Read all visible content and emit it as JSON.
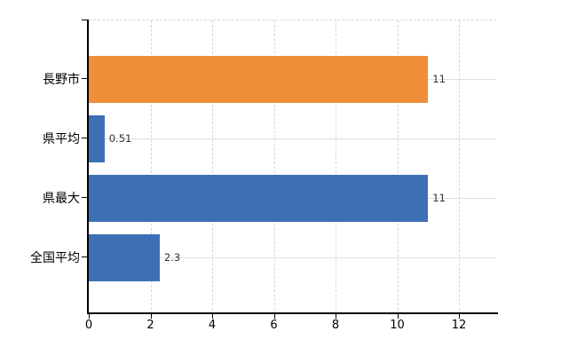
{
  "chart_data": {
    "type": "bar",
    "orientation": "horizontal",
    "title": "",
    "categories": [
      "長野市",
      "県平均",
      "県最大",
      "全国平均"
    ],
    "values": [
      11,
      0.51,
      11,
      2.3
    ],
    "value_labels": [
      "11",
      "0.51",
      "11",
      "2.3"
    ],
    "series": [
      {
        "name": "values",
        "values": [
          11,
          0.51,
          11,
          2.3
        ],
        "colors": [
          "#ef8f39",
          "#3e6fb5",
          "#3e6fb5",
          "#3e6fb5"
        ]
      }
    ],
    "colors": {
      "highlight_bar": "#ef8f39",
      "default_bar": "#3e6fb5",
      "axis": "#000000",
      "grid": "#dedede",
      "text": "#000000",
      "value_text": "#333333",
      "background": "#ffffff"
    },
    "xlabel": "",
    "ylabel": "",
    "xlim": [
      0,
      13.2
    ],
    "x_ticks": [
      0,
      2,
      4,
      6,
      8,
      10,
      12
    ],
    "x_tick_labels": [
      "0",
      "2",
      "4",
      "6",
      "8",
      "10",
      "12"
    ],
    "grid": {
      "vertical": "dashed",
      "horizontal": "solid",
      "top_border": "dashed"
    },
    "legend": "none"
  }
}
